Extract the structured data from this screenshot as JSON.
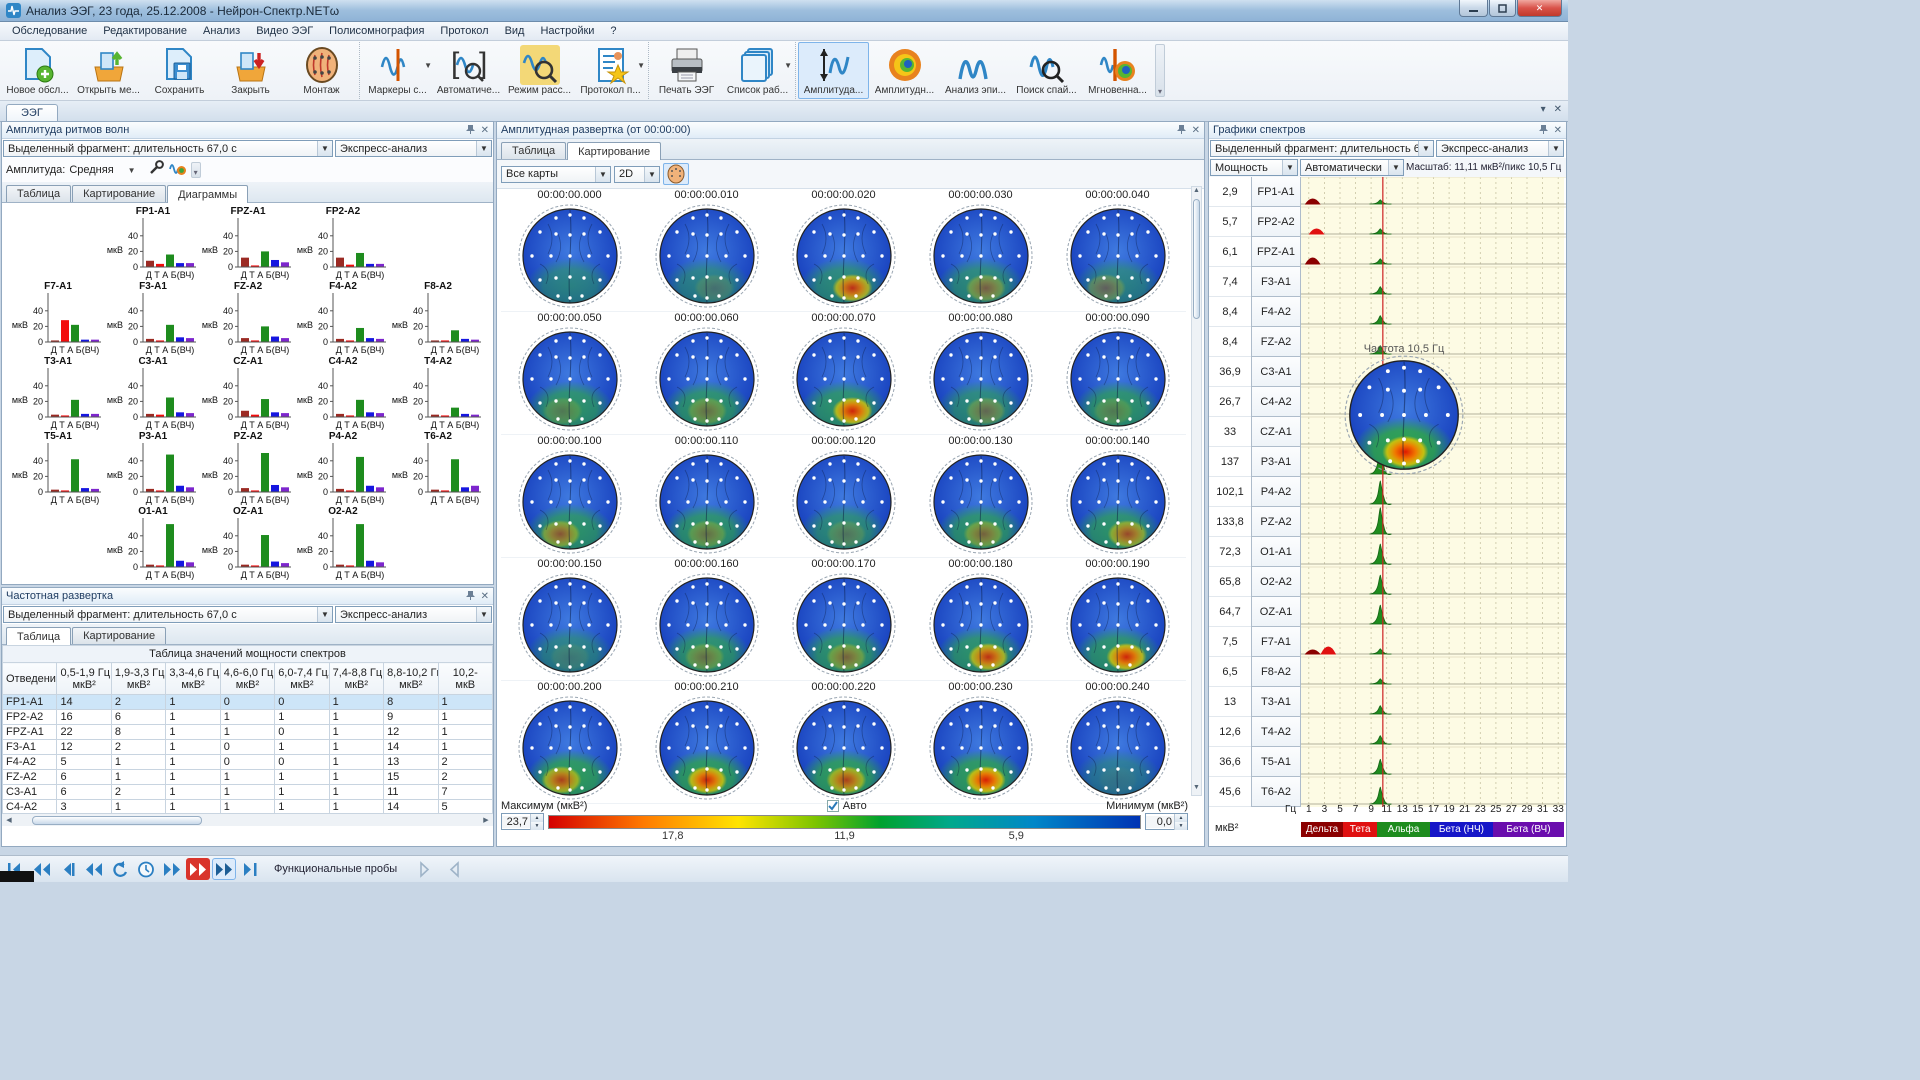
{
  "window": {
    "title": "Анализ ЭЭГ, 23 года, 25.12.2008 - Нейрон-Спектр.NETω"
  },
  "menu": [
    "Обследование",
    "Редактирование",
    "Анализ",
    "Видео ЭЭГ",
    "Полисомнография",
    "Протокол",
    "Вид",
    "Настройки",
    "?"
  ],
  "toolbar": {
    "groups": [
      {
        "items": [
          {
            "label": "Новое обсл...",
            "icon": "new-exam"
          },
          {
            "label": "Открыть ме...",
            "icon": "open-exam"
          },
          {
            "label": "Сохранить",
            "icon": "save"
          },
          {
            "label": "Закрыть",
            "icon": "close-exam"
          },
          {
            "label": "Монтаж",
            "icon": "montage"
          }
        ]
      },
      {
        "items": [
          {
            "label": "Маркеры с...",
            "icon": "markers",
            "dropdown": true
          },
          {
            "label": "Автоматиче...",
            "icon": "auto-analysis"
          },
          {
            "label": "Режим расс...",
            "icon": "review-mode",
            "highlight": true
          },
          {
            "label": "Протокол п...",
            "icon": "protocol",
            "dropdown": true
          }
        ]
      },
      {
        "items": [
          {
            "label": "Печать ЭЭГ",
            "icon": "print"
          },
          {
            "label": "Список раб...",
            "icon": "worklist",
            "dropdown": true
          }
        ]
      },
      {
        "items": [
          {
            "label": "Амплитуда...",
            "icon": "amplitude",
            "selected": true
          },
          {
            "label": "Амплитудн...",
            "icon": "amp-map"
          },
          {
            "label": "Анализ эпи...",
            "icon": "wave-m"
          },
          {
            "label": "Поиск спай...",
            "icon": "spike-search"
          },
          {
            "label": "Мгновенна...",
            "icon": "instant-map"
          }
        ]
      }
    ]
  },
  "main_tab": "ЭЭГ",
  "amplitude_panel": {
    "title": "Амплитуда ритмов волн",
    "fragment": "Выделенный фрагмент: длительность 67,0 с",
    "express": "Экспресс-анализ",
    "amp_label": "Амплитуда:",
    "amp_value": "Средняя",
    "tabs": [
      "Таблица",
      "Картирование",
      "Диаграммы"
    ],
    "active_tab": 2,
    "unit": "мкВ",
    "yticks": [
      0,
      20,
      40
    ],
    "xaxis": "Д Т А Б(ВЧ)",
    "series_colors": [
      "#9b2a23",
      "#f20c0c",
      "#1e8c1e",
      "#1616e0",
      "#7d26cd"
    ],
    "charts": [
      {
        "name": "FP1-A1",
        "row": 0,
        "col": 1,
        "values": [
          8,
          4,
          16,
          5,
          5
        ]
      },
      {
        "name": "FPZ-A1",
        "row": 0,
        "col": 2,
        "values": [
          12,
          2,
          20,
          9,
          6
        ]
      },
      {
        "name": "FP2-A2",
        "row": 0,
        "col": 3,
        "values": [
          12,
          3,
          18,
          4,
          4
        ]
      },
      {
        "name": "F7-A1",
        "row": 1,
        "col": 0,
        "values": [
          2,
          28,
          22,
          3,
          3
        ]
      },
      {
        "name": "F3-A1",
        "row": 1,
        "col": 1,
        "values": [
          4,
          2,
          22,
          6,
          5
        ]
      },
      {
        "name": "FZ-A2",
        "row": 1,
        "col": 2,
        "values": [
          5,
          2,
          20,
          7,
          5
        ]
      },
      {
        "name": "F4-A2",
        "row": 1,
        "col": 3,
        "values": [
          4,
          2,
          18,
          5,
          4
        ]
      },
      {
        "name": "F8-A2",
        "row": 1,
        "col": 4,
        "values": [
          2,
          2,
          15,
          4,
          3
        ]
      },
      {
        "name": "T3-A1",
        "row": 2,
        "col": 0,
        "values": [
          3,
          2,
          22,
          4,
          4
        ]
      },
      {
        "name": "C3-A1",
        "row": 2,
        "col": 1,
        "values": [
          4,
          3,
          25,
          6,
          5
        ]
      },
      {
        "name": "CZ-A1",
        "row": 2,
        "col": 2,
        "values": [
          8,
          3,
          23,
          6,
          5
        ]
      },
      {
        "name": "C4-A2",
        "row": 2,
        "col": 3,
        "values": [
          4,
          2,
          22,
          6,
          5
        ]
      },
      {
        "name": "T4-A2",
        "row": 2,
        "col": 4,
        "values": [
          3,
          2,
          12,
          4,
          3
        ]
      },
      {
        "name": "T5-A1",
        "row": 3,
        "col": 0,
        "values": [
          3,
          2,
          42,
          5,
          4
        ]
      },
      {
        "name": "P3-A1",
        "row": 3,
        "col": 1,
        "values": [
          4,
          2,
          48,
          8,
          6
        ]
      },
      {
        "name": "PZ-A2",
        "row": 3,
        "col": 2,
        "values": [
          5,
          2,
          50,
          9,
          6
        ]
      },
      {
        "name": "P4-A2",
        "row": 3,
        "col": 3,
        "values": [
          4,
          2,
          45,
          8,
          6
        ]
      },
      {
        "name": "T6-A2",
        "row": 3,
        "col": 4,
        "values": [
          3,
          2,
          42,
          6,
          8
        ]
      },
      {
        "name": "O1-A1",
        "row": 4,
        "col": 1,
        "values": [
          3,
          2,
          55,
          8,
          6
        ]
      },
      {
        "name": "OZ-A1",
        "row": 4,
        "col": 2,
        "values": [
          3,
          2,
          41,
          7,
          5
        ]
      },
      {
        "name": "O2-A2",
        "row": 4,
        "col": 3,
        "values": [
          3,
          2,
          55,
          8,
          6
        ]
      }
    ]
  },
  "freq_panel": {
    "title": "Частотная развертка",
    "fragment": "Выделенный фрагмент: длительность 67,0 с",
    "express": "Экспресс-анализ",
    "tabs": [
      "Таблица",
      "Картирование"
    ],
    "active_tab": 0,
    "table": {
      "title": "Таблица значений мощности спектров",
      "col0": "Отведение",
      "headers": [
        "0,5-1,9 Гц,|мкВ²",
        "1,9-3,3 Гц,|мкВ²",
        "3,3-4,6 Гц,|мкВ²",
        "4,6-6,0 Гц,|мкВ²",
        "6,0-7,4 Гц,|мкВ²",
        "7,4-8,8 Гц,|мкВ²",
        "8,8-10,2 Гц,|мкВ²",
        "10,2-|мкВ"
      ],
      "rows": [
        [
          "FP1-A1",
          "14",
          "2",
          "1",
          "0",
          "0",
          "1",
          "8",
          "1"
        ],
        [
          "FP2-A2",
          "16",
          "6",
          "1",
          "1",
          "1",
          "1",
          "9",
          "1"
        ],
        [
          "FPZ-A1",
          "22",
          "8",
          "1",
          "1",
          "0",
          "1",
          "12",
          "1"
        ],
        [
          "F3-A1",
          "12",
          "2",
          "1",
          "0",
          "1",
          "1",
          "14",
          "1"
        ],
        [
          "F4-A2",
          "5",
          "1",
          "1",
          "0",
          "0",
          "1",
          "13",
          "2"
        ],
        [
          "FZ-A2",
          "6",
          "1",
          "1",
          "1",
          "1",
          "1",
          "15",
          "2"
        ],
        [
          "C3-A1",
          "6",
          "2",
          "1",
          "1",
          "1",
          "1",
          "11",
          "7"
        ],
        [
          "C4-A2",
          "3",
          "1",
          "1",
          "1",
          "1",
          "1",
          "14",
          "5"
        ]
      ],
      "selected_row": 0
    }
  },
  "mapping_panel": {
    "title": "Амплитудная развертка (от 00:00:00)",
    "tabs": [
      "Таблица",
      "Картирование"
    ],
    "active_tab": 1,
    "maps_select": "Все карты",
    "dim_select": "2D",
    "maps": [
      {
        "t": "00:00:00.000",
        "g": 0.5,
        "hot": 0,
        "hx": 0
      },
      {
        "t": "00:00:00.010",
        "g": 0.5,
        "hot": 0.15,
        "hx": 0.3
      },
      {
        "t": "00:00:00.020",
        "g": 0.6,
        "hot": 0.8,
        "hx": 0.35
      },
      {
        "t": "00:00:00.030",
        "g": 0.6,
        "hot": 0.4,
        "hx": 0.2
      },
      {
        "t": "00:00:00.040",
        "g": 0.5,
        "hot": 0.3,
        "hx": -0.5
      },
      {
        "t": "00:00:00.050",
        "g": 0.7,
        "hot": 0.2,
        "hx": -0.3
      },
      {
        "t": "00:00:00.060",
        "g": 0.7,
        "hot": 0.3,
        "hx": 0
      },
      {
        "t": "00:00:00.070",
        "g": 0.7,
        "hot": 0.9,
        "hx": 0.35
      },
      {
        "t": "00:00:00.080",
        "g": 0.6,
        "hot": 0.3,
        "hx": 0.2
      },
      {
        "t": "00:00:00.090",
        "g": 0.7,
        "hot": 0.2,
        "hx": -0.2
      },
      {
        "t": "00:00:00.100",
        "g": 0.7,
        "hot": 0.5,
        "hx": -0.4
      },
      {
        "t": "00:00:00.110",
        "g": 0.7,
        "hot": 0.3,
        "hx": 0
      },
      {
        "t": "00:00:00.120",
        "g": 0.6,
        "hot": 0.2,
        "hx": 0.1
      },
      {
        "t": "00:00:00.130",
        "g": 0.7,
        "hot": 0.4,
        "hx": 0.1
      },
      {
        "t": "00:00:00.140",
        "g": 0.7,
        "hot": 0.6,
        "hx": 0.4
      },
      {
        "t": "00:00:00.150",
        "g": 0.5,
        "hot": 0.1,
        "hx": 0
      },
      {
        "t": "00:00:00.160",
        "g": 0.7,
        "hot": 0.3,
        "hx": -0.1
      },
      {
        "t": "00:00:00.170",
        "g": 0.7,
        "hot": 0.4,
        "hx": 0.1
      },
      {
        "t": "00:00:00.180",
        "g": 0.7,
        "hot": 0.8,
        "hx": 0.3
      },
      {
        "t": "00:00:00.190",
        "g": 0.7,
        "hot": 0.9,
        "hx": 0.35
      },
      {
        "t": "00:00:00.200",
        "g": 0.8,
        "hot": 0.7,
        "hx": -0.35
      },
      {
        "t": "00:00:00.210",
        "g": 0.8,
        "hot": 0.9,
        "hx": 0
      },
      {
        "t": "00:00:00.220",
        "g": 0.8,
        "hot": 0.7,
        "hx": 0.1
      },
      {
        "t": "00:00:00.230",
        "g": 0.8,
        "hot": 0.95,
        "hx": 0.2
      },
      {
        "t": "00:00:00.240",
        "g": 0.4,
        "hot": 0.05,
        "hx": 0
      }
    ],
    "bottom": {
      "max_label": "Максимум (мкВ²)",
      "max_value": "23,7",
      "auto_label": "Авто",
      "auto_checked": true,
      "min_label": "Минимум (мкВ²)",
      "min_value": "0,0",
      "scale_labels": [
        "17,8",
        "11,9",
        "5,9"
      ]
    }
  },
  "spectra_panel": {
    "title": "Графики спектров",
    "fragment": "Выделенный фрагмент: длительность 67,0 с",
    "express": "Экспресс-анализ",
    "power": "Мощность",
    "auto": "Автоматически",
    "scale": "Масштаб: 11,11 мкВ²/пикс 10,5 Гц",
    "tooltip": "Частота 10,5 Гц",
    "unit": "мкВ²",
    "hz_label": "Гц",
    "ticks": [
      1,
      3,
      5,
      7,
      9,
      11,
      13,
      15,
      17,
      19,
      21,
      23,
      25,
      27,
      29,
      31,
      33
    ],
    "red_line_hz": 10.5,
    "rows": [
      {
        "value": "2,9",
        "ch": "FP1-A1",
        "peak": 4,
        "extras": [
          {
            "f": 1.5,
            "h": 5,
            "c": "#8b0000"
          }
        ]
      },
      {
        "value": "5,7",
        "ch": "FP2-A2",
        "peak": 5,
        "extras": [
          {
            "f": 2,
            "h": 5,
            "c": "#e01010"
          }
        ]
      },
      {
        "value": "6,1",
        "ch": "FPZ-A1",
        "peak": 5,
        "extras": [
          {
            "f": 1.5,
            "h": 6,
            "c": "#8b0000"
          }
        ]
      },
      {
        "value": "7,4",
        "ch": "F3-A1",
        "peak": 7,
        "extras": []
      },
      {
        "value": "8,4",
        "ch": "F4-A2",
        "peak": 8,
        "extras": []
      },
      {
        "value": "8,4",
        "ch": "FZ-A2",
        "peak": 8,
        "extras": []
      },
      {
        "value": "36,9",
        "ch": "C3-A1",
        "peak": 14,
        "extras": []
      },
      {
        "value": "26,7",
        "ch": "C4-A2",
        "peak": 12,
        "extras": []
      },
      {
        "value": "33",
        "ch": "CZ-A1",
        "peak": 13,
        "extras": []
      },
      {
        "value": "137",
        "ch": "P3-A1",
        "peak": 26,
        "extras": []
      },
      {
        "value": "102,1",
        "ch": "P4-A2",
        "peak": 22,
        "extras": []
      },
      {
        "value": "133,8",
        "ch": "PZ-A2",
        "peak": 25,
        "extras": []
      },
      {
        "value": "72,3",
        "ch": "O1-A1",
        "peak": 19,
        "extras": []
      },
      {
        "value": "65,8",
        "ch": "O2-A2",
        "peak": 18,
        "extras": []
      },
      {
        "value": "64,7",
        "ch": "OZ-A1",
        "peak": 18,
        "extras": []
      },
      {
        "value": "7,5",
        "ch": "F7-A1",
        "peak": 5,
        "extras": [
          {
            "f": 3.5,
            "h": 7,
            "c": "#e01010"
          },
          {
            "f": 1.5,
            "h": 4,
            "c": "#8b0000"
          }
        ]
      },
      {
        "value": "6,5",
        "ch": "F8-A2",
        "peak": 5,
        "extras": []
      },
      {
        "value": "13",
        "ch": "T3-A1",
        "peak": 8,
        "extras": []
      },
      {
        "value": "12,6",
        "ch": "T4-A2",
        "peak": 8,
        "extras": []
      },
      {
        "value": "36,6",
        "ch": "T5-A1",
        "peak": 14,
        "extras": []
      },
      {
        "value": "45,6",
        "ch": "T6-A2",
        "peak": 16,
        "extras": []
      }
    ],
    "legend": [
      {
        "label": "Дельта",
        "color": "#8b0000",
        "w": 0.16
      },
      {
        "label": "Тета",
        "color": "#e01010",
        "w": 0.13
      },
      {
        "label": "Альфа",
        "color": "#1e8c1e",
        "w": 0.2
      },
      {
        "label": "Бета (НЧ)",
        "color": "#1616c8",
        "w": 0.24
      },
      {
        "label": "Бета (ВЧ)",
        "color": "#6a0dad",
        "w": 0.27
      }
    ]
  },
  "statusbar": {
    "buttons": [
      {
        "name": "skip-start-button",
        "icon": "skip-start"
      },
      {
        "name": "fast-backward-button",
        "icon": "double-back"
      },
      {
        "name": "step-backward-button",
        "icon": "back-bar"
      },
      {
        "name": "rewind-button",
        "icon": "double-back"
      },
      {
        "name": "reset-button",
        "icon": "undo"
      },
      {
        "name": "timer-button",
        "icon": "clock"
      },
      {
        "name": "forward-button",
        "icon": "double-fwd"
      },
      {
        "name": "fast-forward-active-button",
        "icon": "double-fwd",
        "active": "red"
      },
      {
        "name": "fast-forward-button",
        "icon": "double-fwd",
        "active": "blue"
      },
      {
        "name": "skip-end-button",
        "icon": "skip-end"
      }
    ],
    "label": "Функциональные пробы",
    "extra_buttons": [
      {
        "name": "proba-forward-button",
        "icon": "ghost-fwd"
      },
      {
        "name": "proba-back-button",
        "icon": "ghost-back"
      }
    ]
  }
}
